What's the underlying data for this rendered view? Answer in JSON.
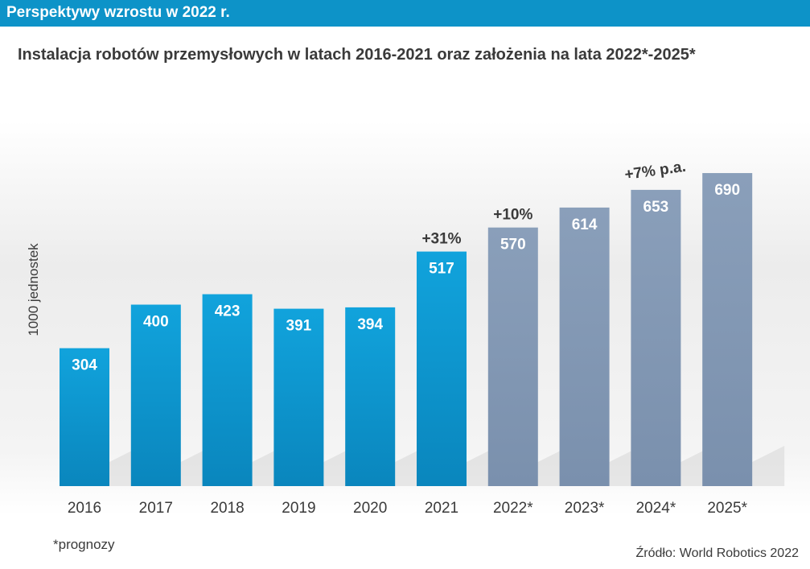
{
  "header": {
    "title": "Perspektywy wzrostu w 2022 r."
  },
  "footnote": "*prognozy",
  "source": "Źródło: World Robotics 2022",
  "colors": {
    "header": "#0d93c8",
    "actual": "#0d93c8",
    "forecast": "#8399b5",
    "text": "#3a3a3a"
  },
  "chart_data": {
    "type": "bar",
    "title": "Instalacja robotów przemysłowych w latach 2016-2021 oraz założenia na lata 2022*-2025*",
    "ylabel": "1000 jednostek",
    "xlabel": "",
    "ylim": [
      0,
      700
    ],
    "categories": [
      "2016",
      "2017",
      "2018",
      "2019",
      "2020",
      "2021",
      "2022*",
      "2023*",
      "2024*",
      "2025*"
    ],
    "values": [
      304,
      400,
      423,
      391,
      394,
      517,
      570,
      614,
      653,
      690
    ],
    "forecast": [
      false,
      false,
      false,
      false,
      false,
      false,
      true,
      true,
      true,
      true
    ],
    "annotations": [
      {
        "text": "+31%",
        "category": "2021"
      },
      {
        "text": "+10%",
        "category": "2022*"
      },
      {
        "text": "+7% p.a.",
        "category": "2024*"
      }
    ]
  }
}
